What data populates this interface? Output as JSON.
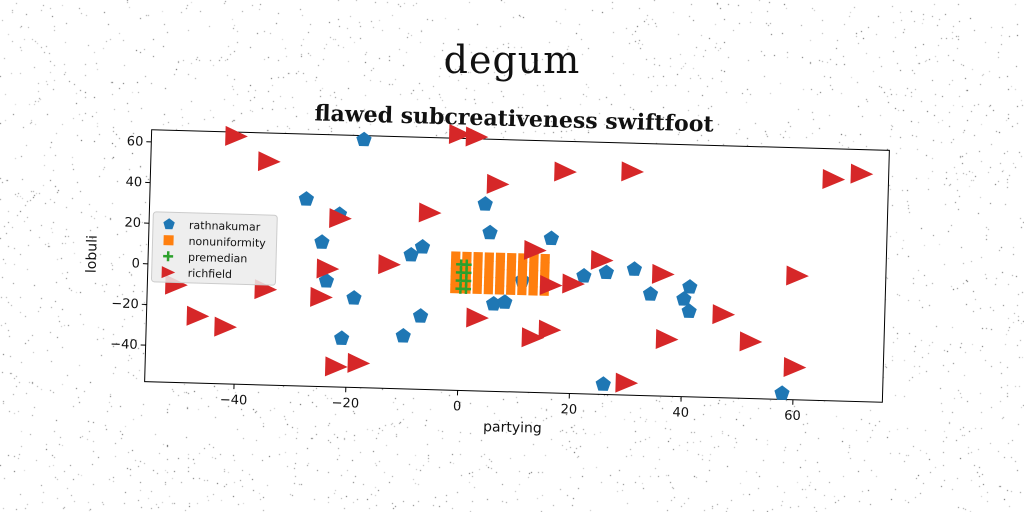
{
  "page": {
    "heading": "degum"
  },
  "chart_data": {
    "type": "scatter",
    "title": "flawed subcreativeness swiftfoot",
    "xlabel": "partying",
    "ylabel": "lobuli",
    "xlim": [
      -56,
      76
    ],
    "ylim": [
      -58,
      66
    ],
    "xticks": [
      -40,
      -20,
      0,
      20,
      40,
      60
    ],
    "yticks": [
      -40,
      -20,
      0,
      20,
      40,
      60
    ],
    "grid": false,
    "legend_position": "center-left",
    "series": [
      {
        "name": "rathnakumar",
        "marker": "pentagon",
        "color": "#1f77b4",
        "x": [
          -18,
          -28,
          -22,
          -25,
          -24,
          -19,
          -21,
          -10,
          -7,
          -7,
          -9,
          4,
          5,
          16,
          6,
          8,
          11,
          22,
          26,
          31,
          34,
          40,
          41,
          41,
          26,
          58
        ],
        "y": [
          64,
          34,
          27,
          13,
          -6,
          -14,
          -34,
          -32,
          -22,
          12,
          8,
          34,
          20,
          18,
          -15,
          -14,
          -3,
          0,
          2,
          4,
          -8,
          -10,
          -4,
          -16,
          -53,
          -55
        ]
      },
      {
        "name": "nonuniformity",
        "marker": "square",
        "color": "#ff7f0e",
        "x": [
          -1,
          1,
          3,
          5,
          7,
          9,
          11,
          13,
          15,
          -1,
          1,
          3,
          5,
          7,
          9,
          11,
          13,
          15,
          -1,
          1,
          3,
          5,
          7,
          9,
          11,
          13,
          15,
          -1,
          1,
          3,
          5,
          7,
          9,
          11,
          13,
          15,
          -1,
          1,
          3,
          5,
          7,
          9,
          11,
          13,
          15
        ],
        "y": [
          8,
          8,
          8,
          8,
          8,
          8,
          8,
          8,
          8,
          4,
          4,
          4,
          4,
          4,
          4,
          4,
          4,
          4,
          0,
          0,
          0,
          0,
          0,
          0,
          0,
          0,
          0,
          -4,
          -4,
          -4,
          -4,
          -4,
          -4,
          -4,
          -4,
          -4,
          -8,
          -8,
          -8,
          -8,
          -8,
          -8,
          -8,
          -8,
          -8
        ]
      },
      {
        "name": "premedian",
        "marker": "plus",
        "color": "#2ca02c",
        "x": [
          0,
          1,
          0,
          1,
          0,
          1,
          0,
          1
        ],
        "y": [
          -8,
          -8,
          -4,
          -4,
          0,
          0,
          4,
          4
        ]
      },
      {
        "name": "richfield",
        "marker": "triangle-right",
        "color": "#d62728",
        "x": [
          -41,
          -35,
          -1,
          2,
          6,
          18,
          30,
          66,
          71,
          -6,
          -22,
          -24,
          -13,
          -51,
          -47,
          -42,
          -35,
          -25,
          -22,
          -18,
          3,
          13,
          13,
          16,
          16,
          20,
          25,
          36,
          37,
          47,
          52,
          60,
          60,
          30
        ],
        "y": [
          64,
          52,
          68,
          67,
          44,
          51,
          52,
          51,
          54,
          29,
          25,
          0,
          3,
          -10,
          -25,
          -30,
          -11,
          -14,
          -48,
          -46,
          -22,
          12,
          -31,
          -27,
          -5,
          -4,
          8,
          2,
          -30,
          -17,
          -30,
          -42,
          3,
          -52
        ]
      }
    ]
  }
}
